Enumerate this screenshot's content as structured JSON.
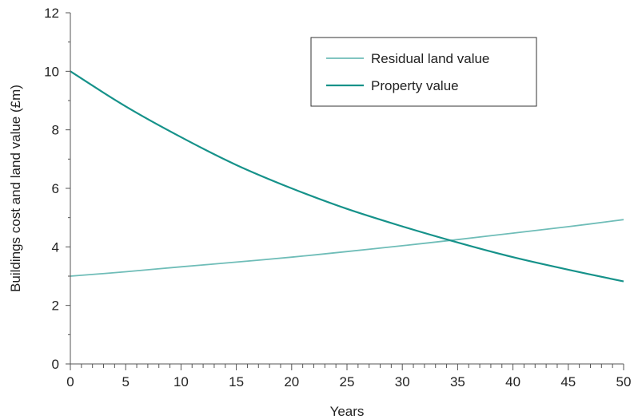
{
  "chart_data": {
    "type": "line",
    "title": "",
    "xlabel": "Years",
    "ylabel": "Buildings cost and land value (£m)",
    "xlim": [
      0,
      50
    ],
    "ylim": [
      0,
      12
    ],
    "x_ticks": [
      "0",
      "5",
      "10",
      "15",
      "20",
      "25",
      "30",
      "35",
      "40",
      "45",
      "50"
    ],
    "y_ticks": [
      "0",
      "2",
      "4",
      "6",
      "8",
      "10",
      "12"
    ],
    "grid": false,
    "legend": {
      "placement": "top-right",
      "entries": [
        "Residual land value",
        "Property value"
      ]
    },
    "x": [
      0,
      5,
      10,
      15,
      20,
      25,
      30,
      35,
      40,
      45,
      50
    ],
    "series": [
      {
        "name": "Residual land value",
        "color": "#6fbdb8",
        "values": [
          3.0,
          3.15,
          3.32,
          3.48,
          3.65,
          3.84,
          4.04,
          4.25,
          4.47,
          4.69,
          4.93
        ]
      },
      {
        "name": "Property value",
        "color": "#16928a",
        "values": [
          10.0,
          8.8,
          7.75,
          6.8,
          6.0,
          5.3,
          4.7,
          4.15,
          3.65,
          3.22,
          2.82
        ]
      }
    ]
  }
}
